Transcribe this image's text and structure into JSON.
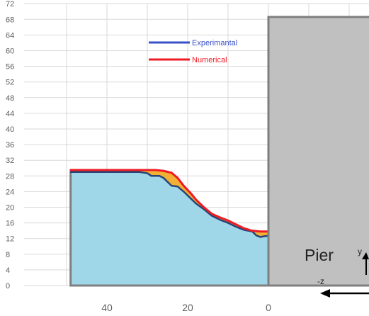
{
  "chart_data": {
    "type": "area",
    "title": "",
    "xlabel": "",
    "ylabel": "",
    "x_reversed": true,
    "xlim": [
      50,
      0
    ],
    "ylim": [
      0,
      72
    ],
    "x_ticks": [
      40,
      20,
      0
    ],
    "y_ticks": [
      0,
      4,
      8,
      12,
      16,
      20,
      24,
      28,
      32,
      36,
      40,
      44,
      48,
      52,
      56,
      60,
      64,
      68,
      72
    ],
    "grid": true,
    "legend": {
      "placement": "top-center",
      "entries": [
        {
          "name": "Experimantal",
          "color": "#3a50c8"
        },
        {
          "name": "Numerical",
          "color": "#ee1c24"
        }
      ]
    },
    "series": [
      {
        "name": "Experimantal",
        "color": "#264478",
        "points": [
          [
            49,
            29
          ],
          [
            45,
            29
          ],
          [
            40,
            29
          ],
          [
            35,
            29
          ],
          [
            32,
            29
          ],
          [
            30,
            28.7
          ],
          [
            29,
            28
          ],
          [
            27,
            28
          ],
          [
            26,
            27.5
          ],
          [
            25,
            26.5
          ],
          [
            24,
            25.5
          ],
          [
            22.5,
            25.3
          ],
          [
            21,
            24
          ],
          [
            20,
            23
          ],
          [
            18,
            21
          ],
          [
            16,
            19.5
          ],
          [
            14,
            17.8
          ],
          [
            12,
            16.8
          ],
          [
            10,
            16
          ],
          [
            8,
            15
          ],
          [
            6,
            14.2
          ],
          [
            4,
            13.8
          ],
          [
            3,
            12.8
          ],
          [
            2,
            12.4
          ],
          [
            1,
            12.6
          ],
          [
            0,
            12.7
          ]
        ]
      },
      {
        "name": "Numerical",
        "color": "#ee1c24",
        "points": [
          [
            49,
            29.5
          ],
          [
            45,
            29.5
          ],
          [
            40,
            29.5
          ],
          [
            35,
            29.5
          ],
          [
            31,
            29.5
          ],
          [
            28,
            29.5
          ],
          [
            26,
            29.3
          ],
          [
            24,
            28.8
          ],
          [
            22.5,
            27.5
          ],
          [
            21,
            25.5
          ],
          [
            19,
            23.3
          ],
          [
            18,
            22
          ],
          [
            16,
            20
          ],
          [
            14,
            18.3
          ],
          [
            12,
            17.4
          ],
          [
            10,
            16.6
          ],
          [
            8,
            15.6
          ],
          [
            6,
            14.6
          ],
          [
            4,
            14
          ],
          [
            2,
            13.8
          ],
          [
            0,
            13.8
          ]
        ]
      }
    ],
    "regions": {
      "fill_below_experimental": "#a0d7e8",
      "fill_between_series": "#f2b035"
    },
    "annotations": {
      "pier": "Pier",
      "axis_y": "y",
      "axis_z": "-z"
    },
    "colors": {
      "grid": "#d9d9d9",
      "pier_fill": "#c0c0c0",
      "pier_border": "#7f7f7f",
      "bed_border": "#7f7f7f",
      "axis_arrow": "#000000"
    }
  }
}
